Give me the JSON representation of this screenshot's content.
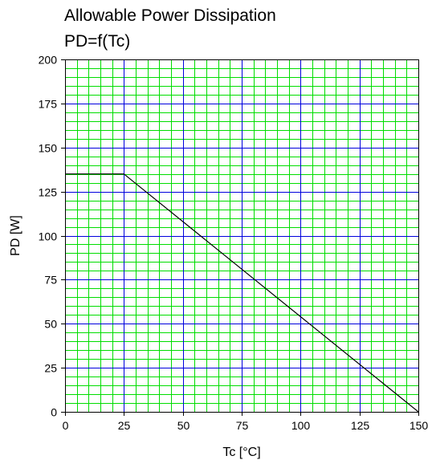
{
  "chart_data": {
    "type": "line",
    "title": "Allowable Power Dissipation",
    "subtitle": "PD=f(Tc)",
    "xlabel": "Tc [°C]",
    "ylabel": "PD [W]",
    "xlim": [
      0,
      150
    ],
    "ylim": [
      0,
      200
    ],
    "x_ticks": [
      0,
      25,
      50,
      75,
      100,
      125,
      150
    ],
    "y_ticks": [
      0,
      25,
      50,
      75,
      100,
      125,
      150,
      175,
      200
    ],
    "grid": true,
    "major_grid_color": "#0000dd",
    "minor_grid_color": "#00dd00",
    "line_color": "#000000",
    "series": [
      {
        "x": [
          0,
          25,
          150
        ],
        "y": [
          135,
          135,
          0
        ]
      }
    ]
  }
}
